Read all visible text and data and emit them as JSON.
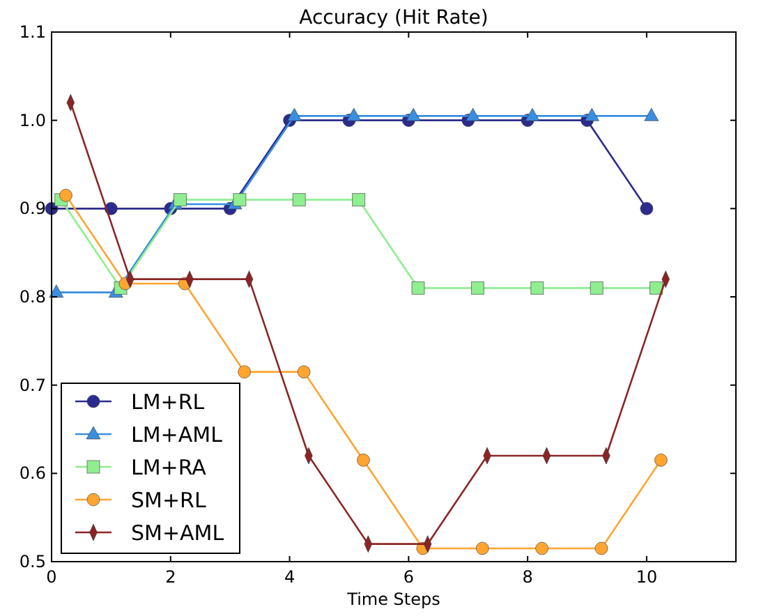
{
  "chart_data": {
    "type": "line",
    "title": "Accuracy (Hit Rate)",
    "xlabel": "Time Steps",
    "xlim": [
      0,
      11.5
    ],
    "xticks": [
      0,
      2,
      4,
      6,
      8,
      10
    ],
    "ylim": [
      0.5,
      1.1
    ],
    "yticks": [
      0.5,
      0.6,
      0.7,
      0.8,
      0.9,
      {
        "value": 1.0,
        "label": "1.0"
      },
      1.1
    ],
    "grid": false,
    "legend": "bottom left",
    "line_style": "solid",
    "series": [
      {
        "name": "LM+RL",
        "color": "#2b2b8f",
        "marker": "circle",
        "x": [
          0,
          1,
          2,
          3,
          4,
          5,
          6,
          7,
          8,
          9,
          10
        ],
        "values": [
          0.9,
          0.9,
          0.9,
          0.9,
          1.0,
          1.0,
          1.0,
          1.0,
          1.0,
          1.0,
          0.9
        ]
      },
      {
        "name": "LM+AML",
        "color": "#3a8ee0",
        "marker": "triangle",
        "x": [
          0.08,
          1.08,
          2.08,
          3.08,
          4.08,
          5.08,
          6.08,
          7.08,
          8.08,
          9.08,
          10.08
        ],
        "values": [
          0.805,
          0.805,
          0.905,
          0.905,
          1.005,
          1.005,
          1.005,
          1.005,
          1.005,
          1.005,
          1.005
        ]
      },
      {
        "name": "LM+RA",
        "color": "#90ee90",
        "marker": "square",
        "x": [
          0.16,
          1.16,
          2.16,
          3.16,
          4.16,
          5.16,
          6.16,
          7.16,
          8.16,
          9.16,
          10.16
        ],
        "values": [
          0.91,
          0.81,
          0.91,
          0.91,
          0.91,
          0.91,
          0.81,
          0.81,
          0.81,
          0.81,
          0.81
        ]
      },
      {
        "name": "SM+RL",
        "color": "#ffa530",
        "marker": "circle",
        "x": [
          0.24,
          1.24,
          2.24,
          3.24,
          4.24,
          5.24,
          6.24,
          7.24,
          8.24,
          9.24,
          10.24
        ],
        "values": [
          0.915,
          0.815,
          0.815,
          0.715,
          0.715,
          0.615,
          0.515,
          0.515,
          0.515,
          0.515,
          0.615
        ]
      },
      {
        "name": "SM+AML",
        "color": "#8b2525",
        "marker": "diamond",
        "x": [
          0.32,
          1.32,
          2.32,
          3.32,
          4.32,
          5.32,
          6.32,
          7.32,
          8.32,
          9.32,
          10.32
        ],
        "values": [
          1.02,
          0.82,
          0.82,
          0.82,
          0.62,
          0.52,
          0.52,
          0.62,
          0.62,
          0.62,
          0.82
        ]
      }
    ]
  }
}
